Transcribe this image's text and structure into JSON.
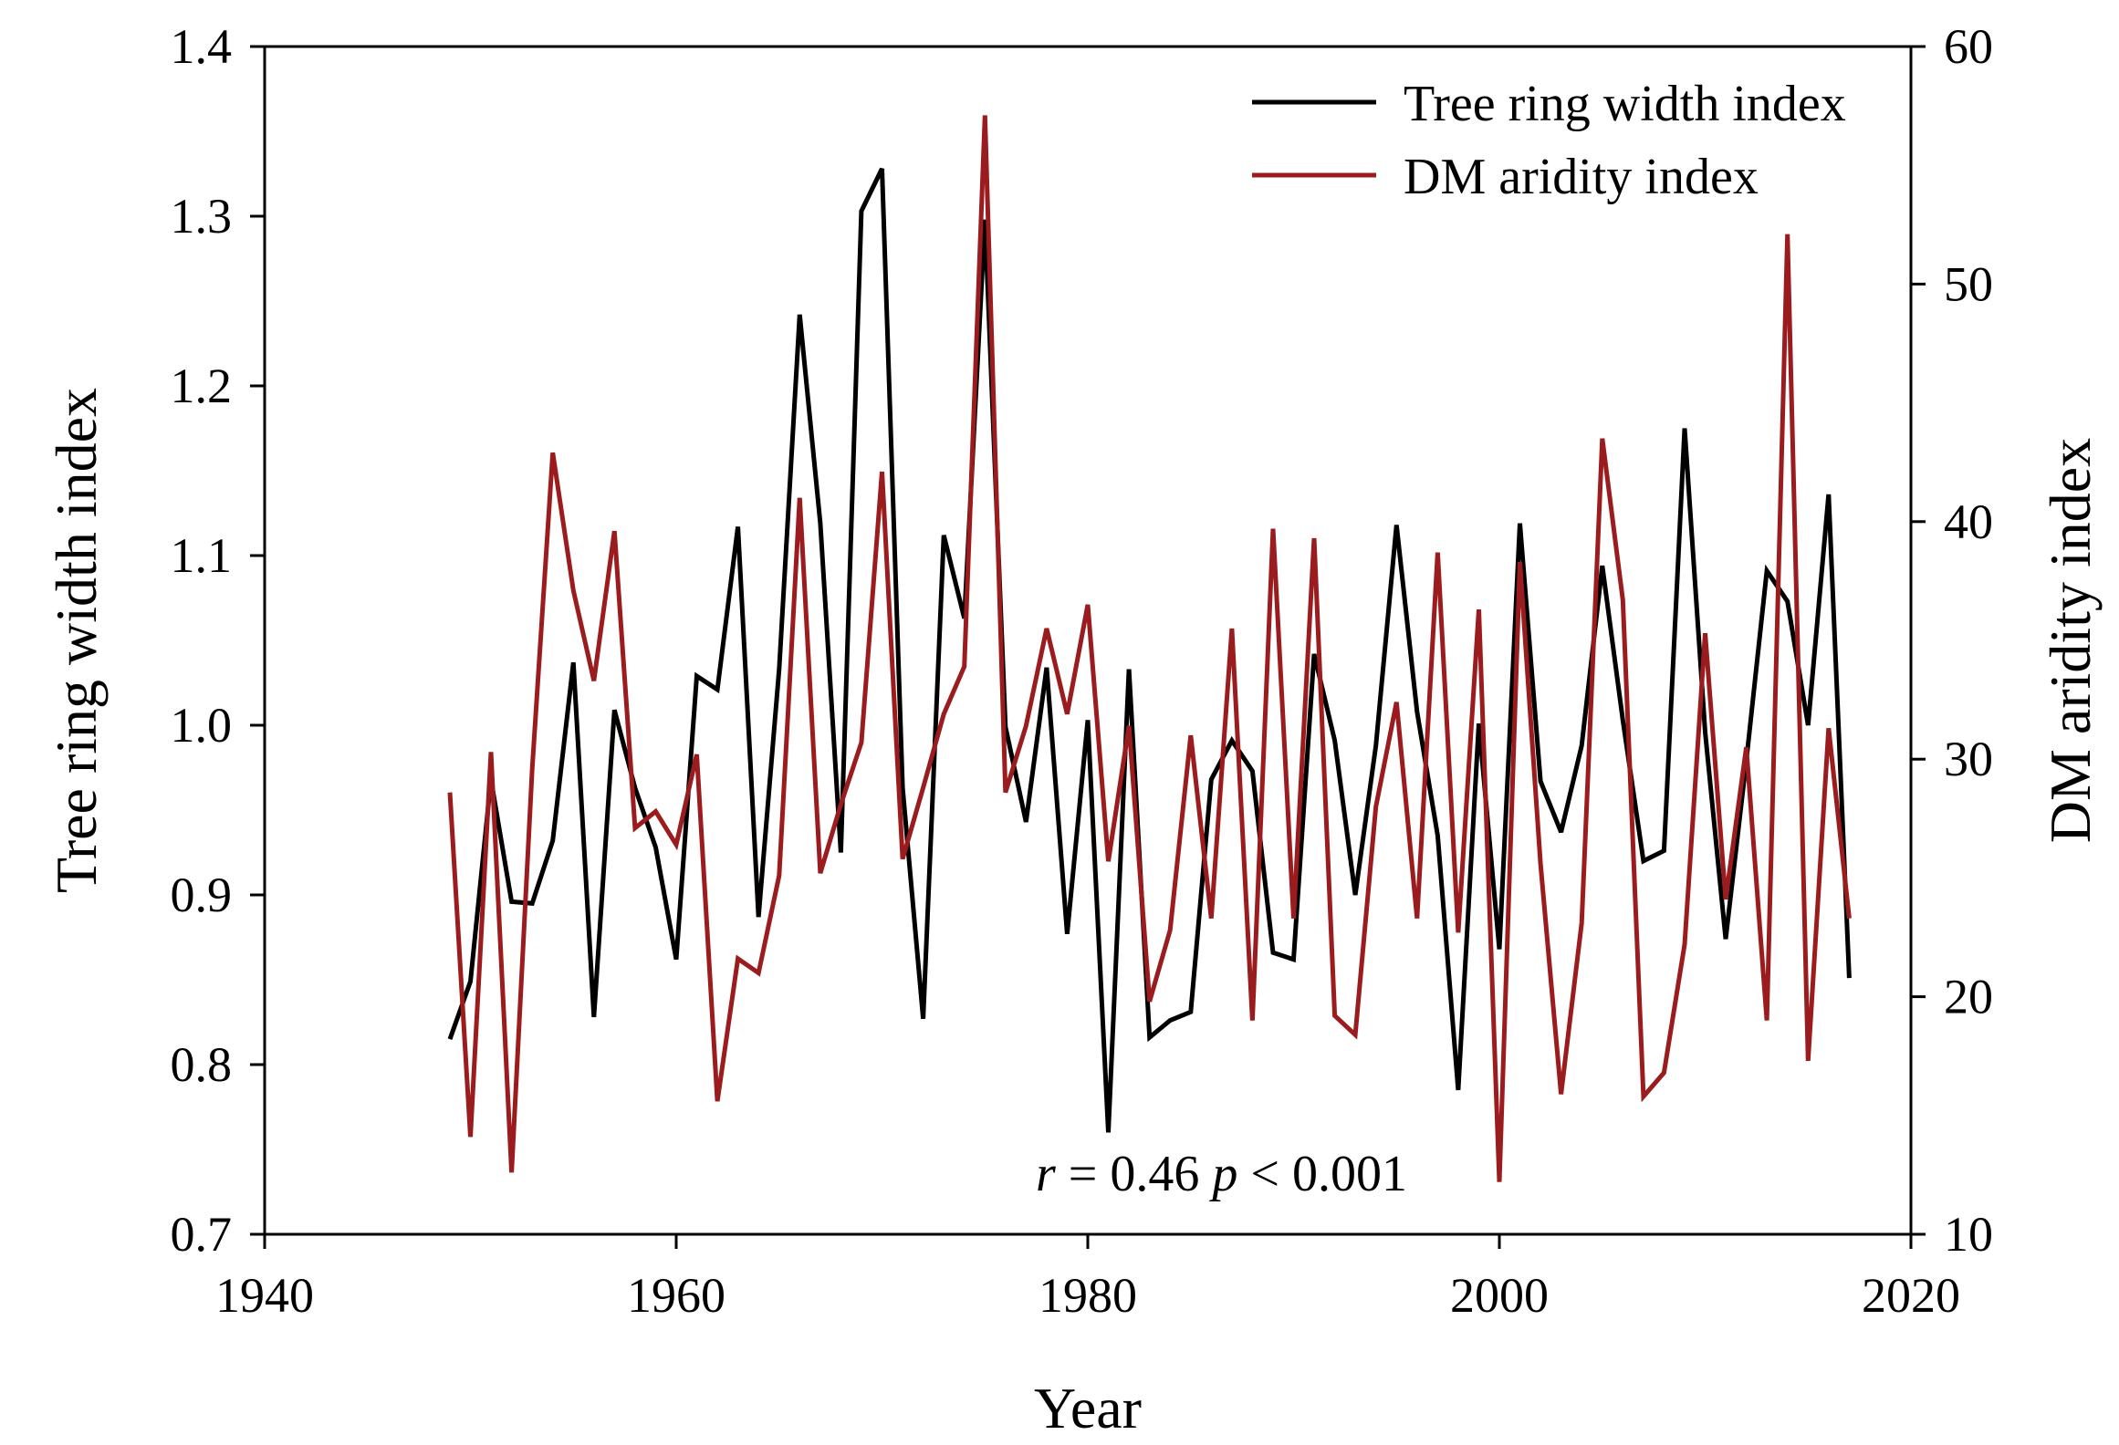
{
  "chart_data": {
    "type": "line",
    "title": "",
    "xlabel": "Year",
    "ylabel": "Tree ring width index",
    "y2label": "DM aridity index",
    "xlim": [
      1940,
      2020
    ],
    "ylim": [
      0.7,
      1.4
    ],
    "y2lim": [
      10,
      60
    ],
    "xticks": [
      "1940",
      "1960",
      "1980",
      "2000",
      "2020"
    ],
    "yticks": [
      "0.7",
      "0.8",
      "0.9",
      "1.0",
      "1.1",
      "1.2",
      "1.3",
      "1.4"
    ],
    "y2ticks": [
      "10",
      "20",
      "30",
      "40",
      "50",
      "60"
    ],
    "legend_position": "top-right",
    "annotation": {
      "r_symbol": "r",
      "r_text": " = 0.46 ",
      "p_symbol": "p",
      "p_text": " < 0.001"
    },
    "series": [
      {
        "name": "Tree ring width index",
        "axis": "left",
        "color": "#000000",
        "x": [
          1949,
          1950,
          1951,
          1952,
          1953,
          1954,
          1955,
          1956,
          1957,
          1958,
          1959,
          1960,
          1961,
          1962,
          1963,
          1964,
          1965,
          1966,
          1967,
          1968,
          1969,
          1970,
          1971,
          1972,
          1973,
          1974,
          1975,
          1976,
          1977,
          1978,
          1979,
          1980,
          1981,
          1982,
          1983,
          1984,
          1985,
          1986,
          1987,
          1988,
          1989,
          1990,
          1991,
          1992,
          1993,
          1994,
          1995,
          1996,
          1997,
          1998,
          1999,
          2000,
          2001,
          2002,
          2003,
          2004,
          2005,
          2006,
          2007,
          2008,
          2009,
          2010,
          2011,
          2012,
          2013,
          2014,
          2015,
          2016,
          2017
        ],
        "values": [
          0.815,
          0.849,
          0.968,
          0.896,
          0.895,
          0.932,
          1.037,
          0.828,
          1.009,
          0.963,
          0.928,
          0.862,
          1.029,
          1.021,
          1.117,
          0.887,
          1.033,
          1.242,
          1.119,
          0.925,
          1.303,
          1.328,
          0.963,
          0.827,
          1.112,
          1.063,
          1.298,
          0.999,
          0.943,
          1.034,
          0.877,
          1.003,
          0.76,
          1.033,
          0.816,
          0.826,
          0.831,
          0.968,
          0.991,
          0.973,
          0.866,
          0.862,
          1.042,
          0.991,
          0.9,
          0.988,
          1.118,
          1.008,
          0.935,
          0.785,
          1.001,
          0.868,
          1.119,
          0.967,
          0.937,
          0.988,
          1.094,
          1.003,
          0.92,
          0.926,
          1.175,
          0.996,
          0.874,
          0.979,
          1.091,
          1.073,
          1.0,
          1.136,
          0.851
        ]
      },
      {
        "name": "DM aridity index",
        "axis": "right",
        "color": "#9b1c1f",
        "x": [
          1949,
          1950,
          1951,
          1952,
          1953,
          1954,
          1955,
          1956,
          1957,
          1958,
          1959,
          1960,
          1961,
          1962,
          1963,
          1964,
          1965,
          1966,
          1967,
          1968,
          1969,
          1970,
          1971,
          1972,
          1973,
          1974,
          1975,
          1976,
          1977,
          1978,
          1979,
          1980,
          1981,
          1982,
          1983,
          1984,
          1985,
          1986,
          1987,
          1988,
          1989,
          1990,
          1991,
          1992,
          1993,
          1994,
          1995,
          1996,
          1997,
          1998,
          1999,
          2000,
          2001,
          2002,
          2003,
          2004,
          2005,
          2006,
          2007,
          2008,
          2009,
          2010,
          2011,
          2012,
          2013,
          2014,
          2015,
          2016,
          2017
        ],
        "values": [
          28.6,
          14.1,
          30.3,
          12.6,
          29.6,
          42.9,
          37.1,
          33.3,
          39.6,
          27.1,
          27.8,
          26.4,
          30.2,
          15.6,
          21.6,
          21.0,
          25.1,
          41.0,
          25.2,
          28.1,
          30.7,
          42.1,
          25.8,
          28.8,
          31.9,
          33.9,
          57.1,
          28.6,
          31.4,
          35.5,
          31.9,
          36.5,
          25.7,
          31.4,
          19.8,
          22.8,
          31.0,
          23.3,
          35.5,
          19.0,
          39.7,
          23.3,
          39.3,
          19.2,
          18.4,
          28.0,
          32.4,
          23.3,
          38.7,
          22.7,
          36.3,
          12.2,
          38.3,
          25.6,
          15.9,
          23.1,
          43.5,
          36.7,
          15.8,
          16.8,
          22.2,
          35.3,
          24.1,
          30.5,
          19.0,
          52.1,
          17.3,
          31.3,
          23.3
        ]
      }
    ]
  }
}
